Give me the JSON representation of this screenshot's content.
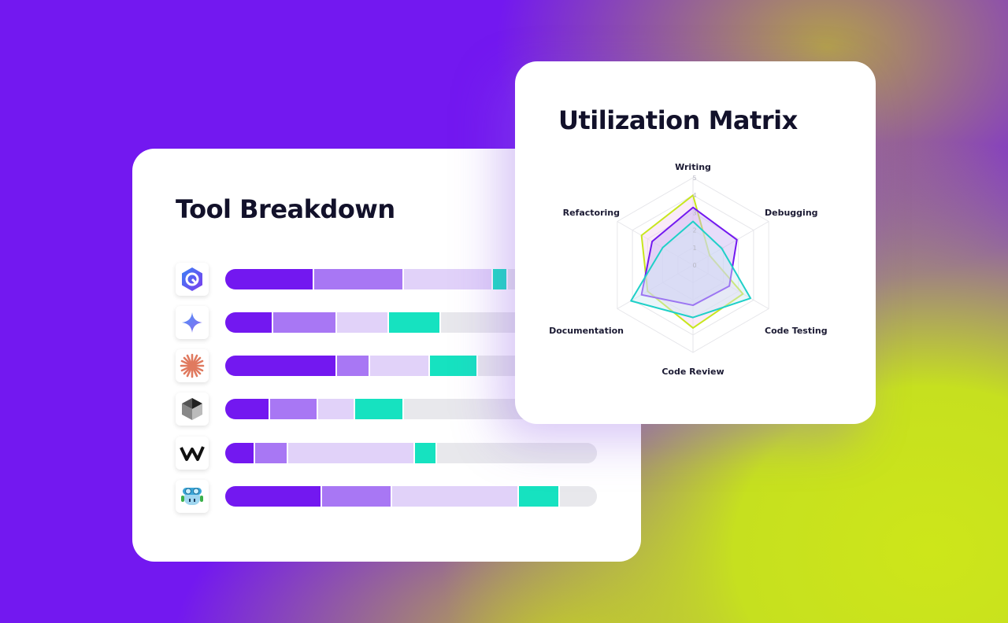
{
  "colors": {
    "background": "#7318F0",
    "accent_yellow": "#C8E61E",
    "seg1": "#7318F0",
    "seg2": "#A877F4",
    "seg3": "#E1D2F9",
    "seg4": "#16E2C0",
    "rest": "#E8E8EC"
  },
  "tool_breakdown": {
    "title": "Tool Breakdown",
    "chart_data": {
      "type": "bar",
      "orientation": "horizontal-stacked",
      "unit": "percent",
      "categories": [
        "tool-hexagon-logo",
        "tool-sparkle-logo",
        "tool-asterisk-logo",
        "tool-cube-logo",
        "tool-w-logo",
        "tool-robot-logo"
      ],
      "series": [
        {
          "color": "#7318F0",
          "values": [
            24,
            13,
            30,
            12,
            8,
            26
          ]
        },
        {
          "color": "#A877F4",
          "values": [
            24,
            17,
            9,
            13,
            9,
            19
          ]
        },
        {
          "color": "#E1D2F9",
          "values": [
            24,
            14,
            16,
            10,
            34,
            34
          ]
        },
        {
          "color": "#16E2C0",
          "values": [
            4,
            14,
            13,
            13,
            6,
            11
          ]
        },
        {
          "color": "#E8E8EC",
          "values": [
            24,
            42,
            32,
            52,
            43,
            10
          ]
        }
      ]
    }
  },
  "utilization_matrix": {
    "title": "Utilization Matrix",
    "chart_data": {
      "type": "radar",
      "axes": [
        "Writing",
        "Debugging",
        "Code Testing",
        "Code Review",
        "Documentation",
        "Refactoring"
      ],
      "ticks": [
        "0",
        "1",
        "2",
        "3",
        "4",
        "5"
      ],
      "range": [
        0,
        5
      ],
      "grid": true,
      "series": [
        {
          "color": "#C8E61E",
          "fill": "#F5D0F0",
          "values": [
            4.0,
            1.1,
            3.3,
            3.6,
            3.0,
            3.4
          ]
        },
        {
          "color": "#7318F0",
          "fill": "#C9B3F5",
          "values": [
            3.3,
            2.9,
            2.4,
            2.3,
            3.4,
            2.7
          ]
        },
        {
          "color": "#1FD0C8",
          "fill": "#CFE9F5",
          "values": [
            2.5,
            1.9,
            3.8,
            3.0,
            4.1,
            2.0
          ]
        }
      ]
    }
  }
}
